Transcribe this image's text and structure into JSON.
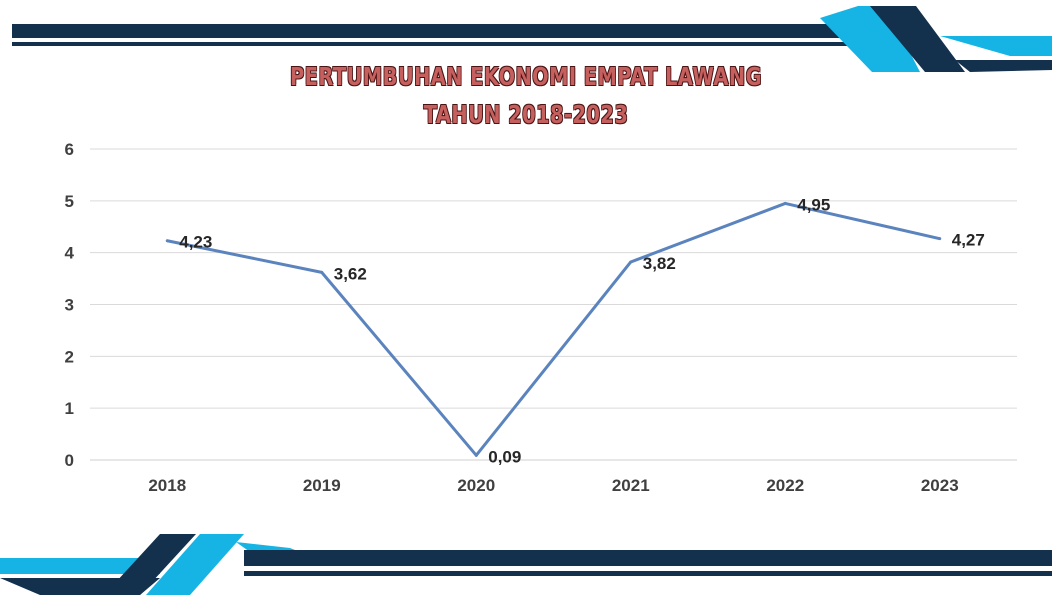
{
  "colors": {
    "navy": "#13304d",
    "cyan": "#16b4e4",
    "line": "#5b84be",
    "grid": "#dadada",
    "title_fill": "#c6605f"
  },
  "chart_data": {
    "type": "line",
    "title": "PERTUMBUHAN EKONOMI EMPAT LAWANG",
    "subtitle": "TAHUN 2018-2023",
    "categories": [
      "2018",
      "2019",
      "2020",
      "2021",
      "2022",
      "2023"
    ],
    "series": [
      {
        "values": [
          4.23,
          3.62,
          0.09,
          3.82,
          4.95,
          4.27
        ],
        "labels": [
          "4,23",
          "3,62",
          "0,09",
          "3,82",
          "4,95",
          "4,27"
        ]
      }
    ],
    "yticks": [
      "0",
      "1",
      "2",
      "3",
      "4",
      "5",
      "6"
    ],
    "ylim": [
      0,
      6
    ],
    "grid": true,
    "legend": "none"
  }
}
